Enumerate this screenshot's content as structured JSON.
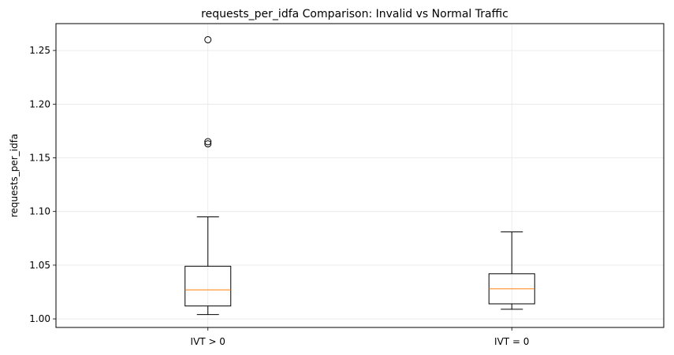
{
  "chart_data": {
    "type": "box",
    "title": "requests_per_idfa Comparison: Invalid vs Normal Traffic",
    "xlabel": "",
    "ylabel": "requests_per_idfa",
    "ylim": [
      0.992,
      1.275
    ],
    "yticks": [
      1.0,
      1.05,
      1.1,
      1.15,
      1.2,
      1.25
    ],
    "ytick_labels": [
      "1.00",
      "1.05",
      "1.10",
      "1.15",
      "1.20",
      "1.25"
    ],
    "grid": true,
    "categories": [
      "IVT > 0",
      "IVT = 0"
    ],
    "boxes": [
      {
        "label": "IVT > 0",
        "whisker_low": 1.004,
        "q1": 1.012,
        "median": 1.027,
        "q3": 1.049,
        "whisker_high": 1.095,
        "outliers": [
          1.163,
          1.165,
          1.26
        ]
      },
      {
        "label": "IVT = 0",
        "whisker_low": 1.009,
        "q1": 1.014,
        "median": 1.028,
        "q3": 1.042,
        "whisker_high": 1.081,
        "outliers": []
      }
    ],
    "colors": {
      "box": "#000000",
      "median": "#ff7f0e",
      "grid": "#e6e6e6"
    }
  }
}
